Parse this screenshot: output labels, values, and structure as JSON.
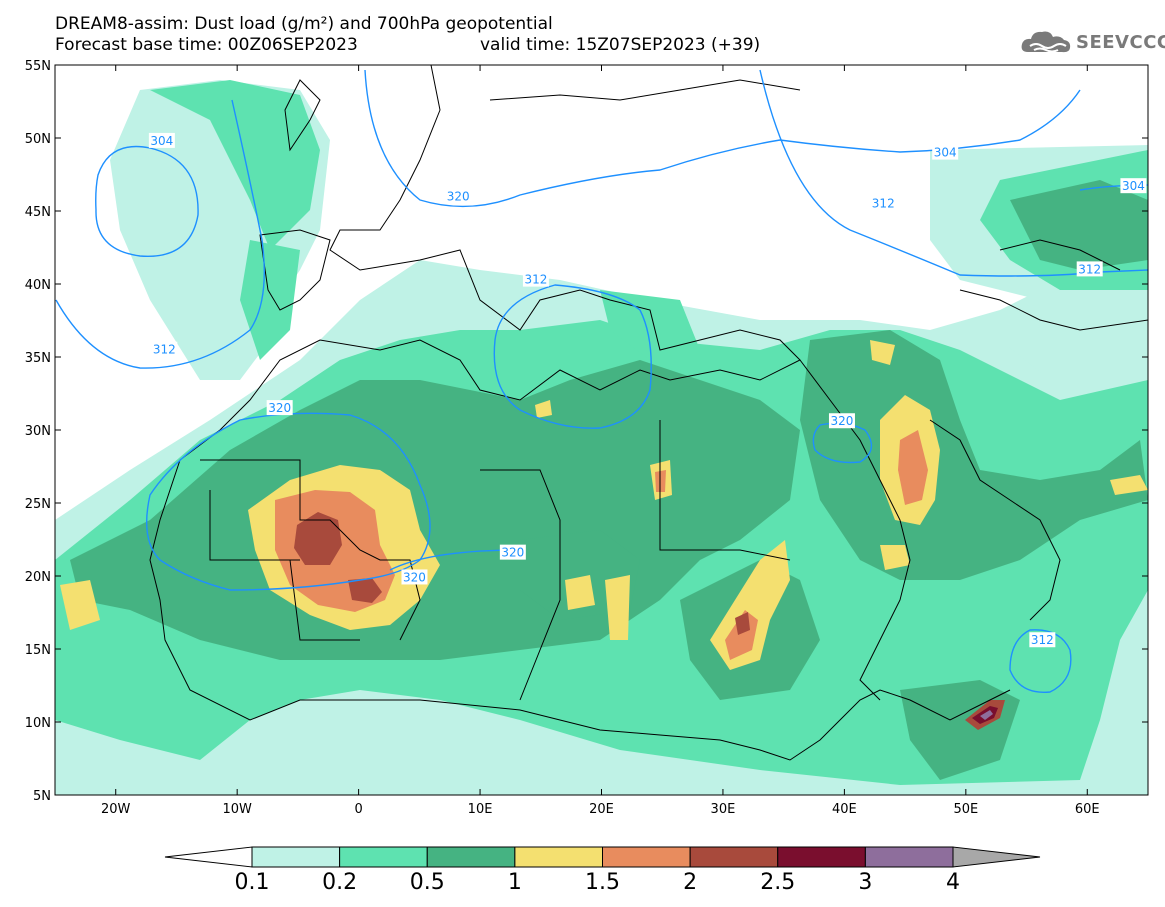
{
  "header": {
    "line1": "DREAM8-assim: Dust load (g/m²) and 700hPa geopotential",
    "base_time": "Forecast base time: 00Z06SEP2023",
    "valid_time": "valid time: 15Z07SEP2023 (+39)",
    "logo_text": "SEEVCCC"
  },
  "map": {
    "lon_range": [
      -25,
      65
    ],
    "lat_range": [
      5,
      55
    ],
    "lon_ticks": [
      "20W",
      "10W",
      "0",
      "10E",
      "20E",
      "30E",
      "40E",
      "50E",
      "60E"
    ],
    "lon_tick_values": [
      -20,
      -10,
      0,
      10,
      20,
      30,
      40,
      50,
      60
    ],
    "lat_ticks": [
      "55N",
      "50N",
      "45N",
      "40N",
      "35N",
      "30N",
      "25N",
      "20N",
      "15N",
      "10N",
      "5N"
    ],
    "lat_tick_values": [
      55,
      50,
      45,
      40,
      35,
      30,
      25,
      20,
      15,
      10,
      5
    ],
    "contour_color": "#1e90ff",
    "contour_labels": [
      {
        "text": "304",
        "lon": -16.2,
        "lat": 49.8
      },
      {
        "text": "320",
        "lon": 8.2,
        "lat": 46.0
      },
      {
        "text": "312",
        "lon": -16.0,
        "lat": 35.5
      },
      {
        "text": "320",
        "lon": -6.5,
        "lat": 31.5
      },
      {
        "text": "312",
        "lon": 14.6,
        "lat": 40.3
      },
      {
        "text": "320",
        "lon": 4.6,
        "lat": 19.9
      },
      {
        "text": "320",
        "lon": 12.7,
        "lat": 21.6
      },
      {
        "text": "320",
        "lon": 39.8,
        "lat": 30.6
      },
      {
        "text": "304",
        "lon": 48.3,
        "lat": 49.0
      },
      {
        "text": "312",
        "lon": 43.2,
        "lat": 45.5
      },
      {
        "text": "304",
        "lon": 63.8,
        "lat": 46.7
      },
      {
        "text": "312",
        "lon": 60.2,
        "lat": 41.0
      },
      {
        "text": "312",
        "lon": 56.3,
        "lat": 15.6
      }
    ]
  },
  "colorbar": {
    "labels": [
      "0.1",
      "0.2",
      "0.5",
      "1",
      "1.5",
      "2",
      "2.5",
      "3",
      "4"
    ],
    "colors": [
      "#bff2e6",
      "#5ee2b0",
      "#45b382",
      "#f4e070",
      "#e88c5e",
      "#a84a3c",
      "#7a0e2e",
      "#8e6e9c",
      "#a8a8a8"
    ]
  },
  "chart_data": {
    "type": "map",
    "title": "DREAM8-assim: Dust load (g/m²) and 700hPa geopotential",
    "variable": "Dust load (g/m²)",
    "levels": [
      0.1,
      0.2,
      0.5,
      1,
      1.5,
      2,
      2.5,
      3,
      4
    ],
    "contour_values": [
      304,
      312,
      320
    ]
  }
}
